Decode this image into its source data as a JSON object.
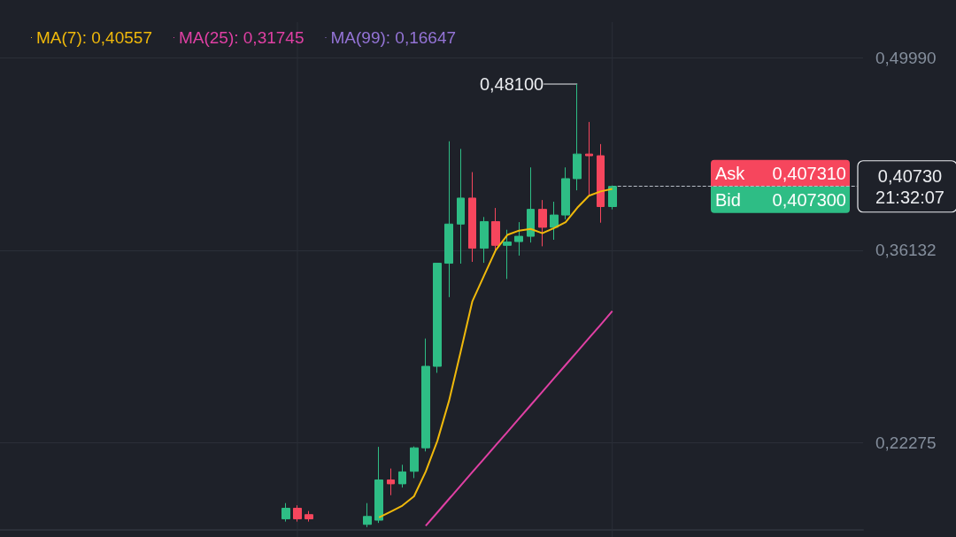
{
  "chart_data": {
    "type": "candlestick",
    "categories": [
      null,
      null,
      null,
      null,
      null,
      null,
      null,
      null,
      null,
      null,
      null,
      null,
      null,
      null,
      null,
      null,
      null,
      null,
      null,
      null,
      null,
      null,
      null,
      null,
      null,
      null,
      null,
      null,
      null,
      null,
      null,
      null,
      null,
      null,
      null,
      null,
      null,
      null,
      null,
      null,
      null,
      null,
      null,
      null,
      null,
      null,
      null,
      null,
      null,
      null,
      null,
      null,
      null,
      null,
      null,
      null,
      null,
      null,
      null,
      null,
      null,
      null,
      null,
      null,
      null,
      null,
      null,
      null,
      null,
      null,
      null,
      null,
      null,
      null
    ],
    "ohlc": [
      null,
      null,
      null,
      null,
      null,
      null,
      null,
      null,
      null,
      null,
      null,
      null,
      null,
      null,
      null,
      null,
      null,
      null,
      null,
      null,
      null,
      null,
      null,
      null,
      [
        0.168,
        0.1793,
        0.166,
        0.1756
      ],
      [
        0.1756,
        0.1777,
        0.166,
        0.168
      ],
      [
        0.171,
        0.1736,
        0.166,
        0.168
      ],
      null,
      null,
      null,
      null,
      [
        0.164,
        0.1793,
        0.162,
        0.1697
      ],
      [
        0.167,
        0.2198,
        0.165,
        0.196
      ],
      [
        0.196,
        0.2042,
        0.185,
        0.1932
      ],
      [
        0.1932,
        0.2069,
        0.1905,
        0.2018
      ],
      [
        0.2022,
        0.2201,
        0.1973,
        0.2191
      ],
      [
        0.2191,
        0.2978,
        0.2165,
        0.2778
      ],
      [
        0.2778,
        0.352,
        0.2731,
        0.352
      ],
      [
        0.352,
        0.4398,
        0.3276,
        0.3802
      ],
      [
        0.3802,
        0.4343,
        0.3517,
        0.3989
      ],
      [
        0.3989,
        0.4176,
        0.353,
        0.3628
      ],
      [
        0.3628,
        0.3853,
        0.3523,
        0.382
      ],
      [
        0.382,
        0.3918,
        0.3612,
        0.3649
      ],
      [
        0.3649,
        0.3761,
        0.3407,
        0.3673
      ],
      [
        0.3676,
        0.3816,
        0.3575,
        0.3714
      ],
      [
        0.3714,
        0.421,
        0.3669,
        0.3908
      ],
      [
        0.3908,
        0.3975,
        0.3642,
        0.3779
      ],
      [
        0.3779,
        0.3963,
        0.3689,
        0.3867
      ],
      [
        0.3867,
        0.421,
        0.3836,
        0.4129
      ],
      [
        0.4129,
        0.481,
        0.4045,
        0.4306
      ],
      [
        0.4306,
        0.4537,
        0.401,
        0.4294
      ],
      [
        0.4294,
        0.4378,
        0.3812,
        0.3928
      ],
      [
        0.3928,
        0.408,
        0.3908,
        0.4073
      ],
      null,
      null,
      null,
      null,
      null,
      null,
      null,
      null,
      null,
      null,
      null,
      null,
      null,
      null,
      null,
      null,
      null,
      null,
      null,
      null,
      null
    ],
    "colors": [
      null,
      null,
      null,
      null,
      null,
      null,
      null,
      null,
      null,
      null,
      null,
      null,
      null,
      null,
      null,
      null,
      null,
      null,
      null,
      null,
      null,
      null,
      null,
      null,
      "#2ebd85",
      "#f6465d",
      "#f6465d",
      null,
      null,
      null,
      null,
      "#2ebd85",
      "#2ebd85",
      "#f6465d",
      "#2ebd85",
      "#2ebd85",
      "#2ebd85",
      "#2ebd85",
      "#2ebd85",
      "#2ebd85",
      "#f6465d",
      "#2ebd85",
      "#f6465d",
      "#2ebd85",
      "#2ebd85",
      "#2ebd85",
      "#f6465d",
      "#2ebd85",
      "#2ebd85",
      "#2ebd85",
      "#f6465d",
      "#f6465d",
      "#2ebd85",
      null,
      null,
      null,
      null,
      null,
      null,
      null,
      null,
      null,
      null,
      null,
      null,
      null,
      null,
      null,
      null,
      null,
      null,
      null,
      null,
      null
    ],
    "series": [
      {
        "name": "MA(7): 0,40557",
        "type": "line",
        "color": "#f0b90b",
        "values": [
          null,
          null,
          null,
          null,
          null,
          null,
          null,
          null,
          null,
          null,
          null,
          null,
          null,
          null,
          null,
          null,
          null,
          null,
          null,
          null,
          null,
          null,
          null,
          null,
          null,
          null,
          null,
          null,
          null,
          null,
          null,
          null,
          0.169,
          0.1732,
          0.1775,
          0.1842,
          0.202,
          0.2241,
          0.2529,
          0.2884,
          0.3246,
          0.343,
          0.3614,
          0.3724,
          0.3755,
          0.3767,
          0.3736,
          0.3773,
          0.3816,
          0.392,
          0.4006,
          0.4037,
          0.4056,
          null,
          null,
          null,
          null,
          null,
          null,
          null,
          null,
          null,
          null,
          null,
          null,
          null,
          null,
          null,
          null,
          null,
          null,
          null,
          null,
          null
        ]
      },
      {
        "name": "MA(25): 0,31745",
        "type": "line",
        "color": "#e040a4",
        "values": [
          null,
          null,
          null,
          null,
          null,
          null,
          null,
          null,
          null,
          null,
          null,
          null,
          null,
          null,
          null,
          null,
          null,
          null,
          null,
          null,
          null,
          null,
          null,
          null,
          null,
          null,
          null,
          null,
          null,
          null,
          null,
          null,
          null,
          null,
          null,
          null,
          0.163,
          0.1726,
          0.1823,
          0.1919,
          0.2016,
          0.2112,
          0.2209,
          0.2305,
          0.2402,
          0.2498,
          0.2595,
          0.2691,
          0.2788,
          0.2884,
          0.2981,
          0.3077,
          0.3175,
          null,
          null,
          null,
          null,
          null,
          null,
          null,
          null,
          null,
          null,
          null,
          null,
          null,
          null,
          null,
          null,
          null,
          null,
          null,
          null,
          null
        ]
      },
      {
        "name": "MA(99): 0,16647",
        "type": "line",
        "color": "#9474d6",
        "values": [
          null,
          null,
          null,
          null,
          null,
          null,
          null,
          null,
          null,
          null,
          null,
          null,
          null,
          null,
          null,
          null,
          null,
          null,
          null,
          null,
          null,
          null,
          null,
          null,
          null,
          null,
          null,
          null,
          null,
          null,
          null,
          null,
          null,
          null,
          null,
          null,
          null,
          null,
          null,
          null,
          null,
          null,
          null,
          null,
          null,
          null,
          null,
          null,
          null,
          null,
          null,
          null,
          null,
          null,
          null,
          null,
          null,
          null,
          null,
          null,
          null,
          null,
          null,
          null,
          null,
          null,
          null,
          null,
          null,
          null,
          null,
          null,
          null,
          null
        ]
      }
    ],
    "ylim": [
      0.16,
      0.5256
    ],
    "yticks": [
      {
        "value": 0.22275,
        "label": "0,22275"
      },
      {
        "value": 0.36132,
        "label": "0,36132"
      },
      {
        "value": 0.4999,
        "label": "0,49990"
      }
    ],
    "grid": "y",
    "legend": "top left",
    "ref_lines": [
      {
        "axis": "y",
        "value": 0.4073,
        "label": "0,40730",
        "line_style": "dashed",
        "color": "#b7bdc6"
      }
    ],
    "annotations": [
      "0,48100",
      "Ask",
      "0,407310",
      "Bid",
      "0,407300",
      "21:32:07"
    ]
  }
}
